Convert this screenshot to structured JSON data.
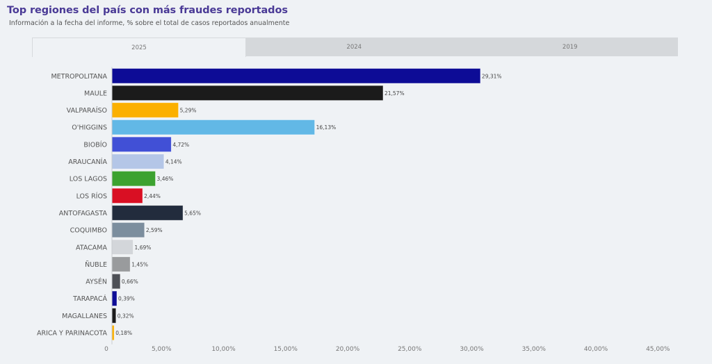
{
  "header": {
    "title": "Top regiones del país con más fraudes reportados",
    "subtitle": "Información a la fecha del informe, % sobre el total de casos reportados anualmente"
  },
  "tabs": [
    {
      "label": "2025",
      "active": true
    },
    {
      "label": "2024",
      "active": false
    },
    {
      "label": "2019",
      "active": false
    }
  ],
  "chart_data": {
    "type": "bar",
    "orientation": "horizontal",
    "title": "Top regiones del país con más fraudes reportados",
    "subtitle": "Información a la fecha del informe, % sobre el total de casos reportados anualmente",
    "xlabel": "",
    "ylabel": "",
    "xlim": [
      0,
      45
    ],
    "grid": false,
    "legend": "none",
    "categories": [
      "METROPOLITANA",
      "MAULE",
      "VALPARAÍSO",
      "O'HIGGINS",
      "BIOBÍO",
      "ARAUCANÍA",
      "LOS LAGOS",
      "LOS RÍOS",
      "ANTOFAGASTA",
      "COQUIMBO",
      "ATACAMA",
      "ÑUBLE",
      "AYSÉN",
      "TARAPACÁ",
      "MAGALLANES",
      "ARICA Y PARINACOTA"
    ],
    "values": [
      29.31,
      21.57,
      5.29,
      16.13,
      4.72,
      4.14,
      3.46,
      2.44,
      5.65,
      2.59,
      1.69,
      1.45,
      0.66,
      0.39,
      0.32,
      0.18
    ],
    "value_labels": [
      "29,31%",
      "21,57%",
      "5,29%",
      "16,13%",
      "4,72%",
      "4,14%",
      "3,46%",
      "2,44%",
      "5,65%",
      "2,59%",
      "1,69%",
      "1,45%",
      "0,66%",
      "0,39%",
      "0,32%",
      "0,18%"
    ],
    "colors": [
      "#0d0c96",
      "#1b1b1b",
      "#fbb000",
      "#62b8e6",
      "#4150d6",
      "#b4c6e7",
      "#3ca230",
      "#d90f23",
      "#222c3d",
      "#7c8e9e",
      "#d3d6da",
      "#999b9d",
      "#4d5056",
      "#0d0c96",
      "#1b1b1b",
      "#fbb000"
    ],
    "ticks": [
      0,
      5,
      10,
      15,
      20,
      25,
      30,
      35,
      40,
      45
    ],
    "tick_labels": [
      "0",
      "5,00%",
      "10,00%",
      "15,00%",
      "20,00%",
      "25,00%",
      "30,00%",
      "35,00%",
      "40,00%",
      "45,00%"
    ]
  }
}
